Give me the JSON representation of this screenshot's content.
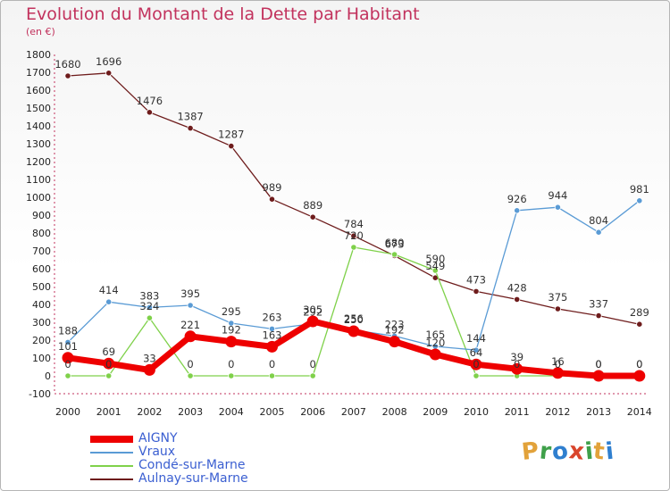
{
  "title": "Evolution du Montant de la Dette par Habitant",
  "unit": "(en €)",
  "logo": {
    "text": "Proxiti",
    "colors": [
      "#e2a23a",
      "#3fa04a",
      "#2f7fcf",
      "#d9452c",
      "#3fa04a",
      "#e2a23a",
      "#2f7fcf"
    ]
  },
  "chart_data": {
    "type": "line",
    "x": [
      "2000",
      "2001",
      "2002",
      "2003",
      "2004",
      "2005",
      "2006",
      "2007",
      "2008",
      "2009",
      "2010",
      "2011",
      "2012",
      "2013",
      "2014"
    ],
    "ylim": [
      -100,
      1800
    ],
    "yticks": [
      -100,
      0,
      100,
      200,
      300,
      400,
      500,
      600,
      700,
      800,
      900,
      1000,
      1100,
      1200,
      1300,
      1400,
      1500,
      1600,
      1700,
      1800
    ],
    "grid": false,
    "legend_position": "bottom-left",
    "series": [
      {
        "name": "AIGNY",
        "color": "#ee0000",
        "values": [
          101,
          69,
          33,
          221,
          192,
          163,
          305,
          250,
          192,
          120,
          64,
          39,
          16,
          0,
          0
        ],
        "labels": [
          "101",
          "69",
          "33",
          "221",
          "192",
          "163",
          "305",
          "250",
          "192",
          "120",
          "64",
          "39",
          "16",
          "0",
          "0"
        ]
      },
      {
        "name": "Vraux",
        "color": "#5a9bd5",
        "values": [
          188,
          414,
          383,
          395,
          295,
          263,
          292,
          256,
          223,
          165,
          144,
          926,
          944,
          804,
          981
        ],
        "labels": [
          "188",
          "414",
          "383",
          "395",
          "295",
          "263",
          "292",
          "256",
          "223",
          "165",
          "144",
          "926",
          "944",
          "804",
          "981"
        ]
      },
      {
        "name": "Condé-sur-Marne",
        "color": "#7fd14a",
        "values": [
          0,
          0,
          324,
          0,
          0,
          0,
          0,
          720,
          680,
          590,
          0,
          0,
          0,
          0,
          0
        ],
        "labels": [
          "0",
          "0",
          "324",
          "0",
          "0",
          "0",
          "0",
          "720",
          "680",
          "590",
          "0",
          "0",
          "0",
          "0",
          "0"
        ]
      },
      {
        "name": "Aulnay-sur-Marne",
        "color": "#6e1c1c",
        "values": [
          1680,
          1696,
          1476,
          1387,
          1287,
          989,
          889,
          784,
          673,
          549,
          473,
          428,
          375,
          337,
          289
        ],
        "labels": [
          "1680",
          "1696",
          "1476",
          "1387",
          "1287",
          "989",
          "889",
          "784",
          "673",
          "549",
          "473",
          "428",
          "375",
          "337",
          "289"
        ]
      }
    ]
  }
}
